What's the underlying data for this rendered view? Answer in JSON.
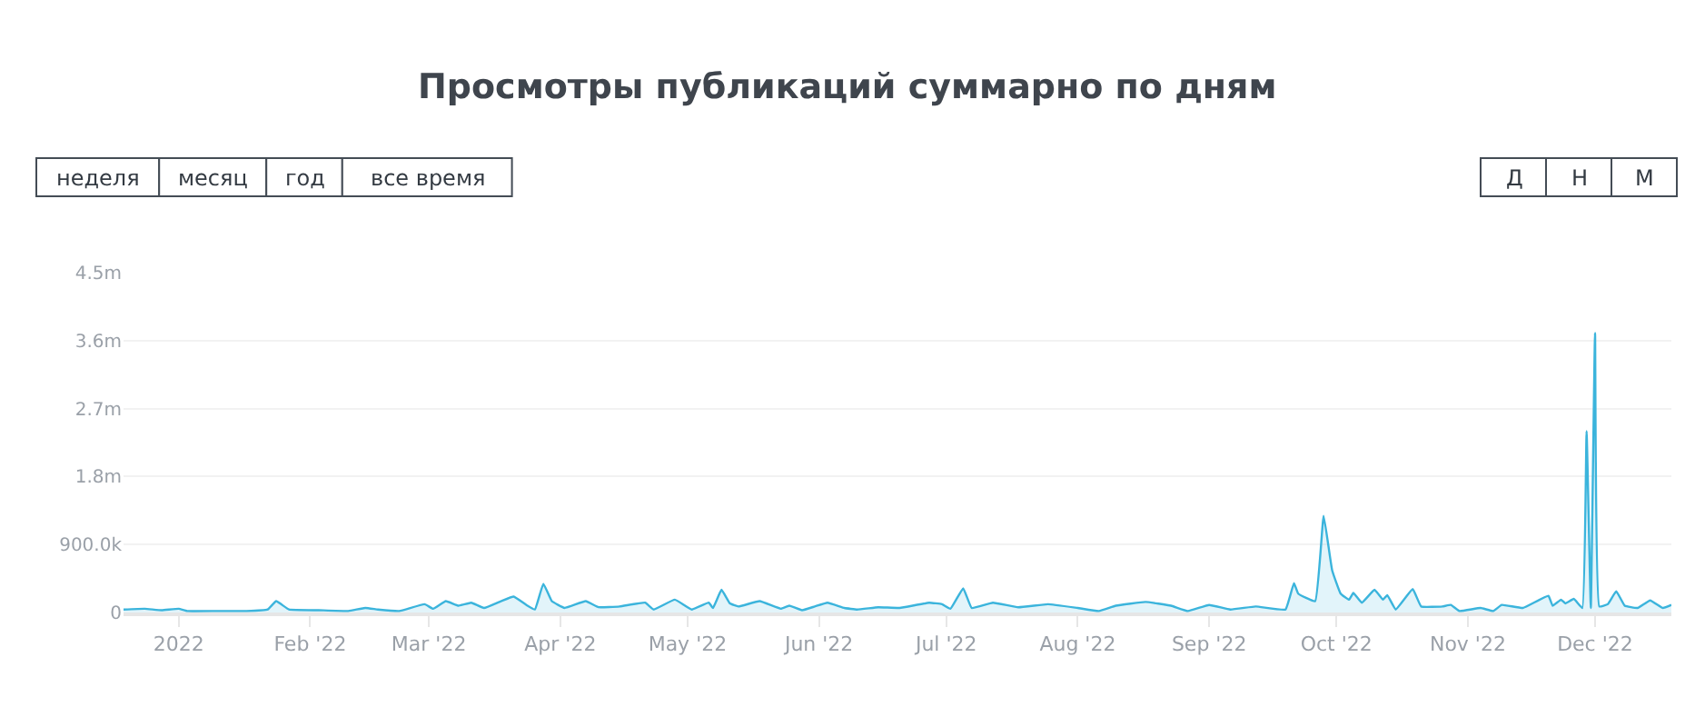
{
  "chart_data": {
    "type": "area",
    "title": "Просмотры публикаций суммарно по дням",
    "annotations": [
      "неделя",
      "месяц",
      "год",
      "все время",
      "Д",
      "Н",
      "М"
    ],
    "x": [
      "2021-12-19",
      "2021-12-24",
      "2021-12-28",
      "2022-01-01",
      "2022-01-03",
      "2022-01-10",
      "2022-01-17",
      "2022-01-22",
      "2022-01-24",
      "2022-01-27",
      "2022-02-03",
      "2022-02-10",
      "2022-02-14",
      "2022-02-17",
      "2022-02-22",
      "2022-02-28",
      "2022-03-02",
      "2022-03-05",
      "2022-03-08",
      "2022-03-11",
      "2022-03-14",
      "2022-03-18",
      "2022-03-21",
      "2022-03-24",
      "2022-03-26",
      "2022-03-28",
      "2022-03-30",
      "2022-04-02",
      "2022-04-07",
      "2022-04-10",
      "2022-04-15",
      "2022-04-21",
      "2022-04-23",
      "2022-04-28",
      "2022-05-02",
      "2022-05-06",
      "2022-05-07",
      "2022-05-09",
      "2022-05-11",
      "2022-05-13",
      "2022-05-18",
      "2022-05-23",
      "2022-05-25",
      "2022-05-28",
      "2022-05-31",
      "2022-06-03",
      "2022-06-07",
      "2022-06-10",
      "2022-06-15",
      "2022-06-20",
      "2022-06-27",
      "2022-06-30",
      "2022-07-02",
      "2022-07-05",
      "2022-07-07",
      "2022-07-12",
      "2022-07-18",
      "2022-07-25",
      "2022-08-01",
      "2022-08-06",
      "2022-08-10",
      "2022-08-17",
      "2022-08-23",
      "2022-08-27",
      "2022-09-01",
      "2022-09-06",
      "2022-09-12",
      "2022-09-19",
      "2022-09-21",
      "2022-09-22",
      "2022-09-26",
      "2022-09-28",
      "2022-09-30",
      "2022-10-02",
      "2022-10-04",
      "2022-10-05",
      "2022-10-07",
      "2022-10-10",
      "2022-10-12",
      "2022-10-13",
      "2022-10-15",
      "2022-10-19",
      "2022-10-21",
      "2022-10-26",
      "2022-10-28",
      "2022-10-30",
      "2022-11-04",
      "2022-11-07",
      "2022-11-09",
      "2022-11-14",
      "2022-11-20",
      "2022-11-21",
      "2022-11-23",
      "2022-11-24",
      "2022-11-26",
      "2022-11-28",
      "2022-11-29",
      "2022-11-30",
      "2022-12-01",
      "2022-12-02",
      "2022-12-04",
      "2022-12-06",
      "2022-12-08",
      "2022-12-11",
      "2022-12-14",
      "2022-12-17",
      "2022-12-19"
    ],
    "series": [
      {
        "color": "#3bb4dc",
        "values": [
          40000,
          50000,
          30000,
          50000,
          20000,
          20000,
          20000,
          40000,
          150000,
          40000,
          30000,
          20000,
          60000,
          40000,
          20000,
          110000,
          50000,
          150000,
          90000,
          130000,
          60000,
          150000,
          210000,
          100000,
          40000,
          380000,
          150000,
          60000,
          150000,
          70000,
          80000,
          130000,
          40000,
          170000,
          40000,
          130000,
          60000,
          300000,
          120000,
          80000,
          150000,
          50000,
          90000,
          30000,
          80000,
          130000,
          60000,
          40000,
          70000,
          60000,
          130000,
          110000,
          50000,
          320000,
          60000,
          130000,
          70000,
          110000,
          60000,
          20000,
          90000,
          140000,
          90000,
          20000,
          100000,
          40000,
          80000,
          40000,
          390000,
          250000,
          150000,
          1280000,
          560000,
          250000,
          170000,
          260000,
          130000,
          300000,
          170000,
          230000,
          40000,
          310000,
          80000,
          80000,
          100000,
          20000,
          60000,
          20000,
          100000,
          60000,
          220000,
          90000,
          170000,
          120000,
          180000,
          60000,
          2400000,
          60000,
          3700000,
          80000,
          110000,
          280000,
          90000,
          60000,
          160000,
          60000,
          100000
        ]
      }
    ],
    "xlim": [
      "2021-12-19",
      "2022-12-19"
    ],
    "xticks": [
      {
        "value": "2022-01-01",
        "label": "2022"
      },
      {
        "value": "2022-02-01",
        "label": "Feb '22"
      },
      {
        "value": "2022-03-01",
        "label": "Mar '22"
      },
      {
        "value": "2022-04-01",
        "label": "Apr '22"
      },
      {
        "value": "2022-05-01",
        "label": "May '22"
      },
      {
        "value": "2022-06-01",
        "label": "Jun '22"
      },
      {
        "value": "2022-07-01",
        "label": "Jul '22"
      },
      {
        "value": "2022-08-01",
        "label": "Aug '22"
      },
      {
        "value": "2022-09-01",
        "label": "Sep '22"
      },
      {
        "value": "2022-10-01",
        "label": "Oct '22"
      },
      {
        "value": "2022-11-01",
        "label": "Nov '22"
      },
      {
        "value": "2022-12-01",
        "label": "Dec '22"
      }
    ],
    "ylim": [
      0,
      4500000
    ],
    "yticks": [
      0,
      {
        "value": 900000,
        "label": "900.0k"
      },
      {
        "value": 1800000,
        "label": "1.8m"
      },
      {
        "value": 2700000,
        "label": "2.7m"
      },
      {
        "value": 3600000,
        "label": "3.6m"
      },
      {
        "value": 4500000,
        "label": "4.5m"
      }
    ],
    "grid": "y"
  }
}
